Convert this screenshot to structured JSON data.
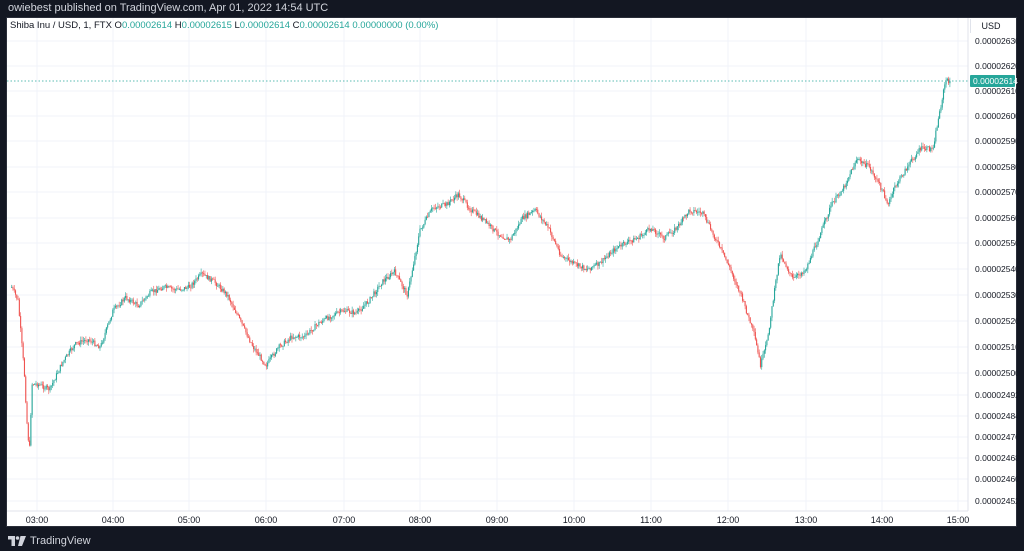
{
  "publisher_line": "owiebest published on TradingView.com, Apr 01, 2022 14:54 UTC",
  "legend": {
    "symbol": "Shiba Inu / USD, 1, FTX",
    "o_label": "O",
    "o": "0.00002614",
    "h_label": "H",
    "h": "0.00002615",
    "l_label": "L",
    "l": "0.00002614",
    "c_label": "C",
    "c": "0.00002614",
    "change": "0.00000000 (0.00%)"
  },
  "currency": "USD",
  "brand": "TradingView",
  "colors": {
    "up": "#26a69a",
    "down": "#ef5350",
    "grid": "#f0f3fa",
    "last_price_line": "#26a69a",
    "axis_text": "#131722"
  },
  "chart_data": {
    "type": "candlestick",
    "x_tick_labels": [
      "03:00",
      "04:00",
      "05:00",
      "06:00",
      "07:00",
      "08:00",
      "09:00",
      "10:00",
      "11:00",
      "12:00",
      "13:00",
      "14:00",
      "15:00"
    ],
    "y_tick_labels": [
      "0.00002630",
      "0.00002620",
      "0.00002610",
      "0.00002600",
      "0.00002590",
      "0.00002580",
      "0.00002570",
      "0.00002560",
      "0.00002550",
      "0.00002540",
      "0.00002530",
      "0.00002520",
      "0.00002510",
      "0.00002500",
      "0.00002492",
      "0.00002484",
      "0.00002476",
      "0.00002468",
      "0.00002460",
      "0.00002452"
    ],
    "last_price": "0.00002614",
    "grid": true,
    "interval": "1 minute",
    "price_path": [
      [
        "02:40",
        2.533,
        "o"
      ],
      [
        "02:45",
        2.528,
        "o"
      ],
      [
        "02:50",
        2.5,
        "o"
      ],
      [
        "02:52",
        2.482,
        "o"
      ],
      [
        "02:54",
        2.47,
        "o"
      ],
      [
        "02:56",
        2.496,
        "o"
      ],
      [
        "03:00",
        2.496,
        "o"
      ],
      [
        "03:10",
        2.494,
        "o"
      ],
      [
        "03:20",
        2.504,
        "o"
      ],
      [
        "03:30",
        2.511,
        "o"
      ],
      [
        "03:40",
        2.513,
        "o"
      ],
      [
        "03:50",
        2.51,
        "o"
      ],
      [
        "04:00",
        2.524,
        "o"
      ],
      [
        "04:10",
        2.529,
        "o"
      ],
      [
        "04:20",
        2.526,
        "o"
      ],
      [
        "04:30",
        2.531,
        "o"
      ],
      [
        "04:40",
        2.533,
        "o"
      ],
      [
        "04:50",
        2.532,
        "o"
      ],
      [
        "05:00",
        2.533,
        "o"
      ],
      [
        "05:10",
        2.538,
        "o"
      ],
      [
        "05:20",
        2.535,
        "o"
      ],
      [
        "05:30",
        2.53,
        "o"
      ],
      [
        "05:40",
        2.52,
        "o"
      ],
      [
        "05:50",
        2.51,
        "o"
      ],
      [
        "06:00",
        2.503,
        "o"
      ],
      [
        "06:10",
        2.51,
        "o"
      ],
      [
        "06:20",
        2.514,
        "o"
      ],
      [
        "06:30",
        2.514,
        "o"
      ],
      [
        "06:40",
        2.519,
        "o"
      ],
      [
        "06:50",
        2.522,
        "o"
      ],
      [
        "07:00",
        2.524,
        "o"
      ],
      [
        "07:10",
        2.523,
        "o"
      ],
      [
        "07:20",
        2.528,
        "o"
      ],
      [
        "07:30",
        2.535,
        "o"
      ],
      [
        "07:40",
        2.539,
        "o"
      ],
      [
        "07:50",
        2.53,
        "o"
      ],
      [
        "08:00",
        2.555,
        "o"
      ],
      [
        "08:10",
        2.564,
        "o"
      ],
      [
        "08:20",
        2.565,
        "o"
      ],
      [
        "08:30",
        2.569,
        "o"
      ],
      [
        "08:40",
        2.563,
        "o"
      ],
      [
        "08:50",
        2.559,
        "o"
      ],
      [
        "09:00",
        2.554,
        "o"
      ],
      [
        "09:10",
        2.551,
        "o"
      ],
      [
        "09:20",
        2.56,
        "o"
      ],
      [
        "09:30",
        2.563,
        "o"
      ],
      [
        "09:40",
        2.556,
        "o"
      ],
      [
        "09:50",
        2.545,
        "o"
      ],
      [
        "10:00",
        2.542,
        "o"
      ],
      [
        "10:10",
        2.54,
        "o"
      ],
      [
        "10:20",
        2.542,
        "o"
      ],
      [
        "10:30",
        2.547,
        "o"
      ],
      [
        "10:40",
        2.55,
        "o"
      ],
      [
        "10:50",
        2.552,
        "o"
      ],
      [
        "11:00",
        2.556,
        "o"
      ],
      [
        "11:10",
        2.552,
        "o"
      ],
      [
        "11:20",
        2.556,
        "o"
      ],
      [
        "11:30",
        2.563,
        "o"
      ],
      [
        "11:40",
        2.562,
        "o"
      ],
      [
        "11:50",
        2.552,
        "o"
      ],
      [
        "12:00",
        2.542,
        "o"
      ],
      [
        "12:10",
        2.53,
        "o"
      ],
      [
        "12:20",
        2.515,
        "o"
      ],
      [
        "12:25",
        2.503,
        "o"
      ],
      [
        "12:30",
        2.512,
        "o"
      ],
      [
        "12:40",
        2.546,
        "o"
      ],
      [
        "12:50",
        2.536,
        "o"
      ],
      [
        "13:00",
        2.54,
        "o"
      ],
      [
        "13:10",
        2.552,
        "o"
      ],
      [
        "13:20",
        2.565,
        "o"
      ],
      [
        "13:30",
        2.572,
        "o"
      ],
      [
        "13:40",
        2.583,
        "o"
      ],
      [
        "13:50",
        2.58,
        "o"
      ],
      [
        "14:00",
        2.571,
        "o"
      ],
      [
        "14:05",
        2.565,
        "o"
      ],
      [
        "14:10",
        2.572,
        "o"
      ],
      [
        "14:20",
        2.58,
        "o"
      ],
      [
        "14:30",
        2.587,
        "o"
      ],
      [
        "14:40",
        2.587,
        "o"
      ],
      [
        "14:45",
        2.6,
        "o"
      ],
      [
        "14:50",
        2.614,
        "o"
      ],
      [
        "14:54",
        2.614,
        "o"
      ]
    ]
  }
}
